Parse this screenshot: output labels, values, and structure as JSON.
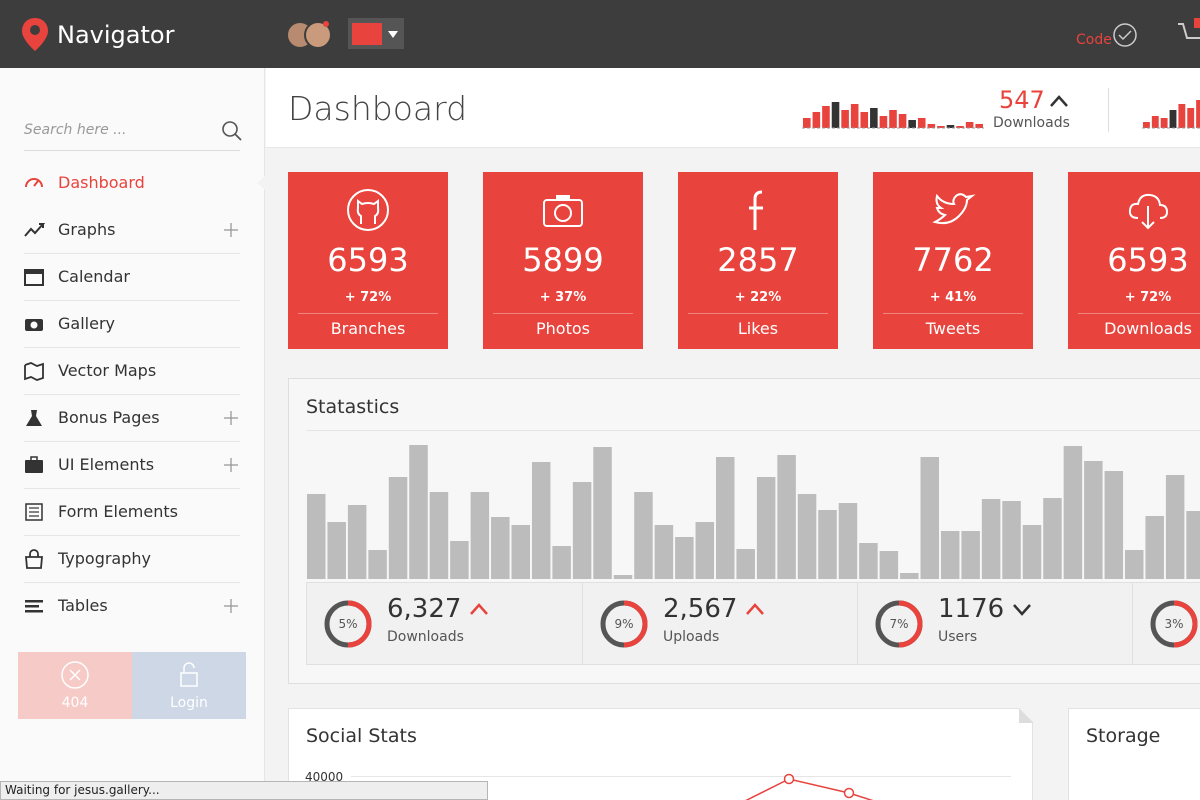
{
  "header": {
    "brand": "Navigator",
    "code_label": "Code"
  },
  "sidebar": {
    "search_placeholder": "Search here ...",
    "menu": [
      {
        "label": "Dashboard",
        "active": true,
        "expandable": false
      },
      {
        "label": "Graphs",
        "active": false,
        "expandable": true
      },
      {
        "label": "Calendar",
        "active": false,
        "expandable": false
      },
      {
        "label": "Gallery",
        "active": false,
        "expandable": false
      },
      {
        "label": "Vector Maps",
        "active": false,
        "expandable": false
      },
      {
        "label": "Bonus Pages",
        "active": false,
        "expandable": true
      },
      {
        "label": "UI Elements",
        "active": false,
        "expandable": true
      },
      {
        "label": "Form Elements",
        "active": false,
        "expandable": false
      },
      {
        "label": "Typography",
        "active": false,
        "expandable": false
      },
      {
        "label": "Tables",
        "active": false,
        "expandable": true
      }
    ],
    "buttons": [
      "404",
      "Login"
    ]
  },
  "page": {
    "title": "Dashboard",
    "header_stat": {
      "value": 547,
      "label": "Downloads",
      "trend": "up"
    },
    "sparkline": [
      10,
      16,
      22,
      26,
      18,
      24,
      16,
      20,
      12,
      18,
      14,
      8,
      10,
      4,
      2,
      3,
      2,
      6,
      4
    ],
    "sparkline_2": [
      6,
      12,
      10,
      18,
      24,
      20,
      28
    ]
  },
  "tiles": [
    {
      "value": 6593,
      "change": "+ 72%",
      "label": "Branches",
      "icon": "github"
    },
    {
      "value": 5899,
      "change": "+ 37%",
      "label": "Photos",
      "icon": "camera"
    },
    {
      "value": 2857,
      "change": "+ 22%",
      "label": "Likes",
      "icon": "facebook"
    },
    {
      "value": 7762,
      "change": "+ 41%",
      "label": "Tweets",
      "icon": "twitter"
    },
    {
      "value": 6593,
      "change": "+ 72%",
      "label": "Downloads",
      "icon": "download"
    }
  ],
  "statistics": {
    "title": "Statastics",
    "bars": [
      85,
      57,
      74,
      29,
      102,
      134,
      87,
      38,
      87,
      62,
      54,
      117,
      33,
      97,
      132,
      4,
      87,
      54,
      42,
      57,
      122,
      30,
      102,
      124,
      85,
      69,
      76,
      36,
      28,
      6,
      122,
      48,
      48,
      80,
      78,
      54,
      81,
      133,
      118,
      108,
      29,
      63,
      104,
      68
    ],
    "summary": [
      {
        "percent": "5%",
        "value": "6,327",
        "label": "Downloads",
        "trend": "up"
      },
      {
        "percent": "9%",
        "value": "2,567",
        "label": "Uploads",
        "trend": "up"
      },
      {
        "percent": "7%",
        "value": "1176",
        "label": "Users",
        "trend": "down"
      },
      {
        "percent": "3%"
      }
    ]
  },
  "social_stats": {
    "title": "Social Stats",
    "y_tick": 40000
  },
  "storage": {
    "title": "Storage"
  },
  "status_bar": "Waiting for jesus.gallery..."
}
